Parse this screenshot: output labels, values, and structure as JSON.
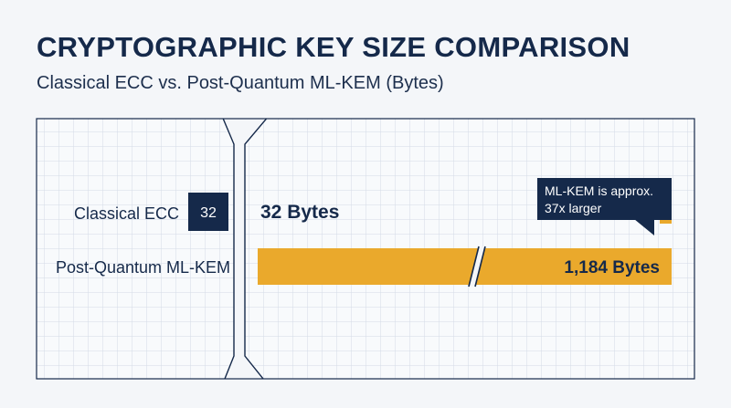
{
  "title": "CRYPTOGRAPHIC KEY SIZE COMPARISON",
  "subtitle": "Classical ECC vs. Post-Quantum ML-KEM (Bytes)",
  "colors": {
    "navy": "#15294a",
    "gold": "#eaa92c",
    "grid": "#d3dbe6",
    "background": "#f4f6f9"
  },
  "chart_data": {
    "type": "bar",
    "orientation": "horizontal",
    "axis_break": true,
    "grid": true,
    "categories": [
      "Classical ECC",
      "Post-Quantum ML-KEM"
    ],
    "values": [
      32,
      1184
    ],
    "unit": "Bytes",
    "bar_labels": [
      "32",
      ""
    ],
    "value_labels": [
      "32 Bytes",
      "1,184 Bytes"
    ],
    "annotation": {
      "lines": [
        "ML-KEM is approx.",
        "37x larger"
      ],
      "ratio": 37
    }
  }
}
